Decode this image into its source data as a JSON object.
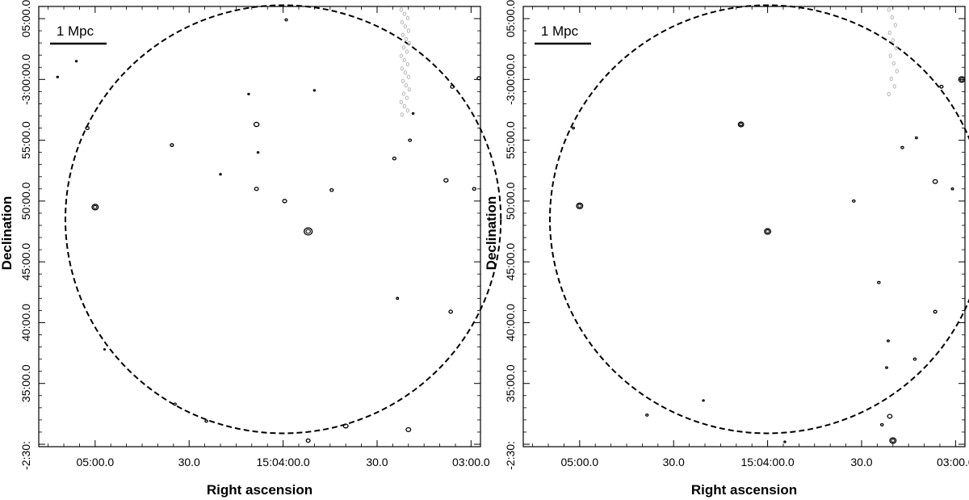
{
  "figure": {
    "colors": {
      "axis": "#000000",
      "contour": "#000000",
      "negative_contour": "#b4b4b4",
      "circle": "#000000"
    },
    "panels": [
      {
        "xlabel": "Right ascension",
        "ylabel": "Declination",
        "scalebar_label": "1 Mpc",
        "ra_ticks": [
          {
            "label": "05:00.0",
            "sec": 300
          },
          {
            "label": "30.0",
            "sec": 270
          },
          {
            "label": "15:04:00.0",
            "sec": 240
          },
          {
            "label": "30.0",
            "sec": 210
          },
          {
            "label": "03:00.0",
            "sec": 180
          }
        ],
        "dec_ticks": [
          {
            "label": "-2:30:",
            "min": 30
          },
          {
            "label": "35:00.0",
            "min": 35
          },
          {
            "label": "40:00.0",
            "min": 40
          },
          {
            "label": "45:00.0",
            "min": 45
          },
          {
            "label": "50:00.0",
            "min": 50
          },
          {
            "label": "55:00.0",
            "min": 55
          },
          {
            "label": "-3:00:00.0",
            "min": 60
          },
          {
            "label": "05:00.0",
            "min": 65
          }
        ]
      },
      {
        "xlabel": "Right ascension",
        "ylabel": "Declination",
        "scalebar_label": "1 Mpc",
        "ra_ticks": [
          {
            "label": "05:00.0",
            "sec": 300
          },
          {
            "label": "30.0",
            "sec": 270
          },
          {
            "label": "15:04:00.0",
            "sec": 240
          },
          {
            "label": "30.0",
            "sec": 210
          },
          {
            "label": "03:00.0",
            "sec": 180
          }
        ],
        "dec_ticks": [
          {
            "label": "-2:30:",
            "min": 30
          },
          {
            "label": "35:00.0",
            "min": 35
          },
          {
            "label": "40:00.0",
            "min": 40
          },
          {
            "label": "45:00.0",
            "min": 45
          },
          {
            "label": "50:00.0",
            "min": 50
          },
          {
            "label": "55:00.0",
            "min": 55
          },
          {
            "label": "-3:00:00.0",
            "min": 60
          },
          {
            "label": "05:00.0",
            "min": 65
          }
        ]
      }
    ]
  },
  "chart_data": [
    {
      "type": "scatter",
      "xlabel": "Right ascension",
      "ylabel": "Declination",
      "x_unit": "seconds of RA after 15:00:00",
      "y_unit": "arcmin below -2:00",
      "xlim": [
        318,
        177
      ],
      "ylim": [
        66,
        29.8
      ],
      "circle": {
        "center_ra": 240,
        "center_dec": 48.5,
        "radius_ra_sec": 69.5,
        "radius_dec_min": 17.6
      },
      "scalebar": "1 Mpc",
      "sources": [
        {
          "ra": 232.0,
          "dec": 47.5,
          "size": 4.5
        },
        {
          "ra": 300.0,
          "dec": 49.5,
          "size": 3.5
        },
        {
          "ra": 232.0,
          "dec": 30.3,
          "size": 2.2
        },
        {
          "ra": 220.0,
          "dec": 31.5,
          "size": 2.6
        },
        {
          "ra": 200.0,
          "dec": 31.2,
          "size": 2.6
        },
        {
          "ra": 264.5,
          "dec": 31.9,
          "size": 1.5
        },
        {
          "ra": 203.5,
          "dec": 42.0,
          "size": 1.2
        },
        {
          "ra": 186.5,
          "dec": 40.9,
          "size": 2.0
        },
        {
          "ra": 179.0,
          "dec": 51.0,
          "size": 1.8
        },
        {
          "ra": 188.0,
          "dec": 51.7,
          "size": 2.3
        },
        {
          "ra": 239.5,
          "dec": 50.0,
          "size": 2.2
        },
        {
          "ra": 248.5,
          "dec": 51.0,
          "size": 2.1
        },
        {
          "ra": 224.5,
          "dec": 50.9,
          "size": 1.8
        },
        {
          "ra": 275.5,
          "dec": 54.6,
          "size": 1.8
        },
        {
          "ra": 248.5,
          "dec": 56.3,
          "size": 2.8
        },
        {
          "ra": 302.5,
          "dec": 56.0,
          "size": 2.0
        },
        {
          "ra": 199.5,
          "dec": 55.0,
          "size": 1.6
        },
        {
          "ra": 186.0,
          "dec": 59.4,
          "size": 2.0
        },
        {
          "ra": 177.5,
          "dec": 60.1,
          "size": 2.0
        },
        {
          "ra": 274.5,
          "dec": 33.3,
          "size": 1.4
        },
        {
          "ra": 248.0,
          "dec": 54.0,
          "size": 1.0
        },
        {
          "ra": 239.0,
          "dec": 64.9,
          "size": 1.4
        },
        {
          "ra": 251.0,
          "dec": 58.8,
          "size": 1.0
        },
        {
          "ra": 198.5,
          "dec": 57.2,
          "size": 1.0
        },
        {
          "ra": 204.5,
          "dec": 53.5,
          "size": 1.8
        },
        {
          "ra": 297.0,
          "dec": 37.8,
          "size": 0.9
        },
        {
          "ra": 260.0,
          "dec": 52.2,
          "size": 1.0
        },
        {
          "ra": 312.0,
          "dec": 60.2,
          "size": 1.0
        },
        {
          "ra": 306.0,
          "dec": 61.5,
          "size": 1.0
        },
        {
          "ra": 230.0,
          "dec": 59.1,
          "size": 1.0
        }
      ]
    },
    {
      "type": "scatter",
      "xlabel": "Right ascension",
      "ylabel": "Declination",
      "x_unit": "seconds of RA after 15:00:00",
      "y_unit": "arcmin below -2:00",
      "xlim": [
        318,
        177
      ],
      "ylim": [
        66,
        29.8
      ],
      "circle": {
        "center_ra": 240,
        "center_dec": 48.5,
        "radius_ra_sec": 69.5,
        "radius_dec_min": 17.6
      },
      "scalebar": "1 Mpc",
      "sources": [
        {
          "ra": 240.0,
          "dec": 47.5,
          "size": 3.5
        },
        {
          "ra": 300.0,
          "dec": 49.6,
          "size": 3.5
        },
        {
          "ra": 248.5,
          "dec": 56.3,
          "size": 3.0
        },
        {
          "ra": 178.0,
          "dec": 60.0,
          "size": 3.5
        },
        {
          "ra": 186.5,
          "dec": 51.6,
          "size": 2.5
        },
        {
          "ra": 200.0,
          "dec": 30.3,
          "size": 3.5
        },
        {
          "ra": 201.0,
          "dec": 32.3,
          "size": 2.5
        },
        {
          "ra": 203.5,
          "dec": 31.6,
          "size": 1.5
        },
        {
          "ra": 186.5,
          "dec": 40.9,
          "size": 1.8
        },
        {
          "ra": 193.0,
          "dec": 37.0,
          "size": 1.5
        },
        {
          "ra": 204.5,
          "dec": 43.3,
          "size": 1.5
        },
        {
          "ra": 212.5,
          "dec": 50.0,
          "size": 1.5
        },
        {
          "ra": 197.0,
          "dec": 54.4,
          "size": 1.5
        },
        {
          "ra": 192.5,
          "dec": 55.2,
          "size": 1.2
        },
        {
          "ra": 302.0,
          "dec": 56.0,
          "size": 1.2
        },
        {
          "ra": 278.5,
          "dec": 32.4,
          "size": 1.4
        },
        {
          "ra": 184.5,
          "dec": 59.4,
          "size": 1.8
        },
        {
          "ra": 181.0,
          "dec": 51.0,
          "size": 1.2
        },
        {
          "ra": 260.5,
          "dec": 33.6,
          "size": 1.0
        },
        {
          "ra": 202.0,
          "dec": 36.3,
          "size": 1.2
        },
        {
          "ra": 201.5,
          "dec": 38.5,
          "size": 1.2
        },
        {
          "ra": 234.5,
          "dec": 30.2,
          "size": 1.0
        }
      ]
    }
  ]
}
